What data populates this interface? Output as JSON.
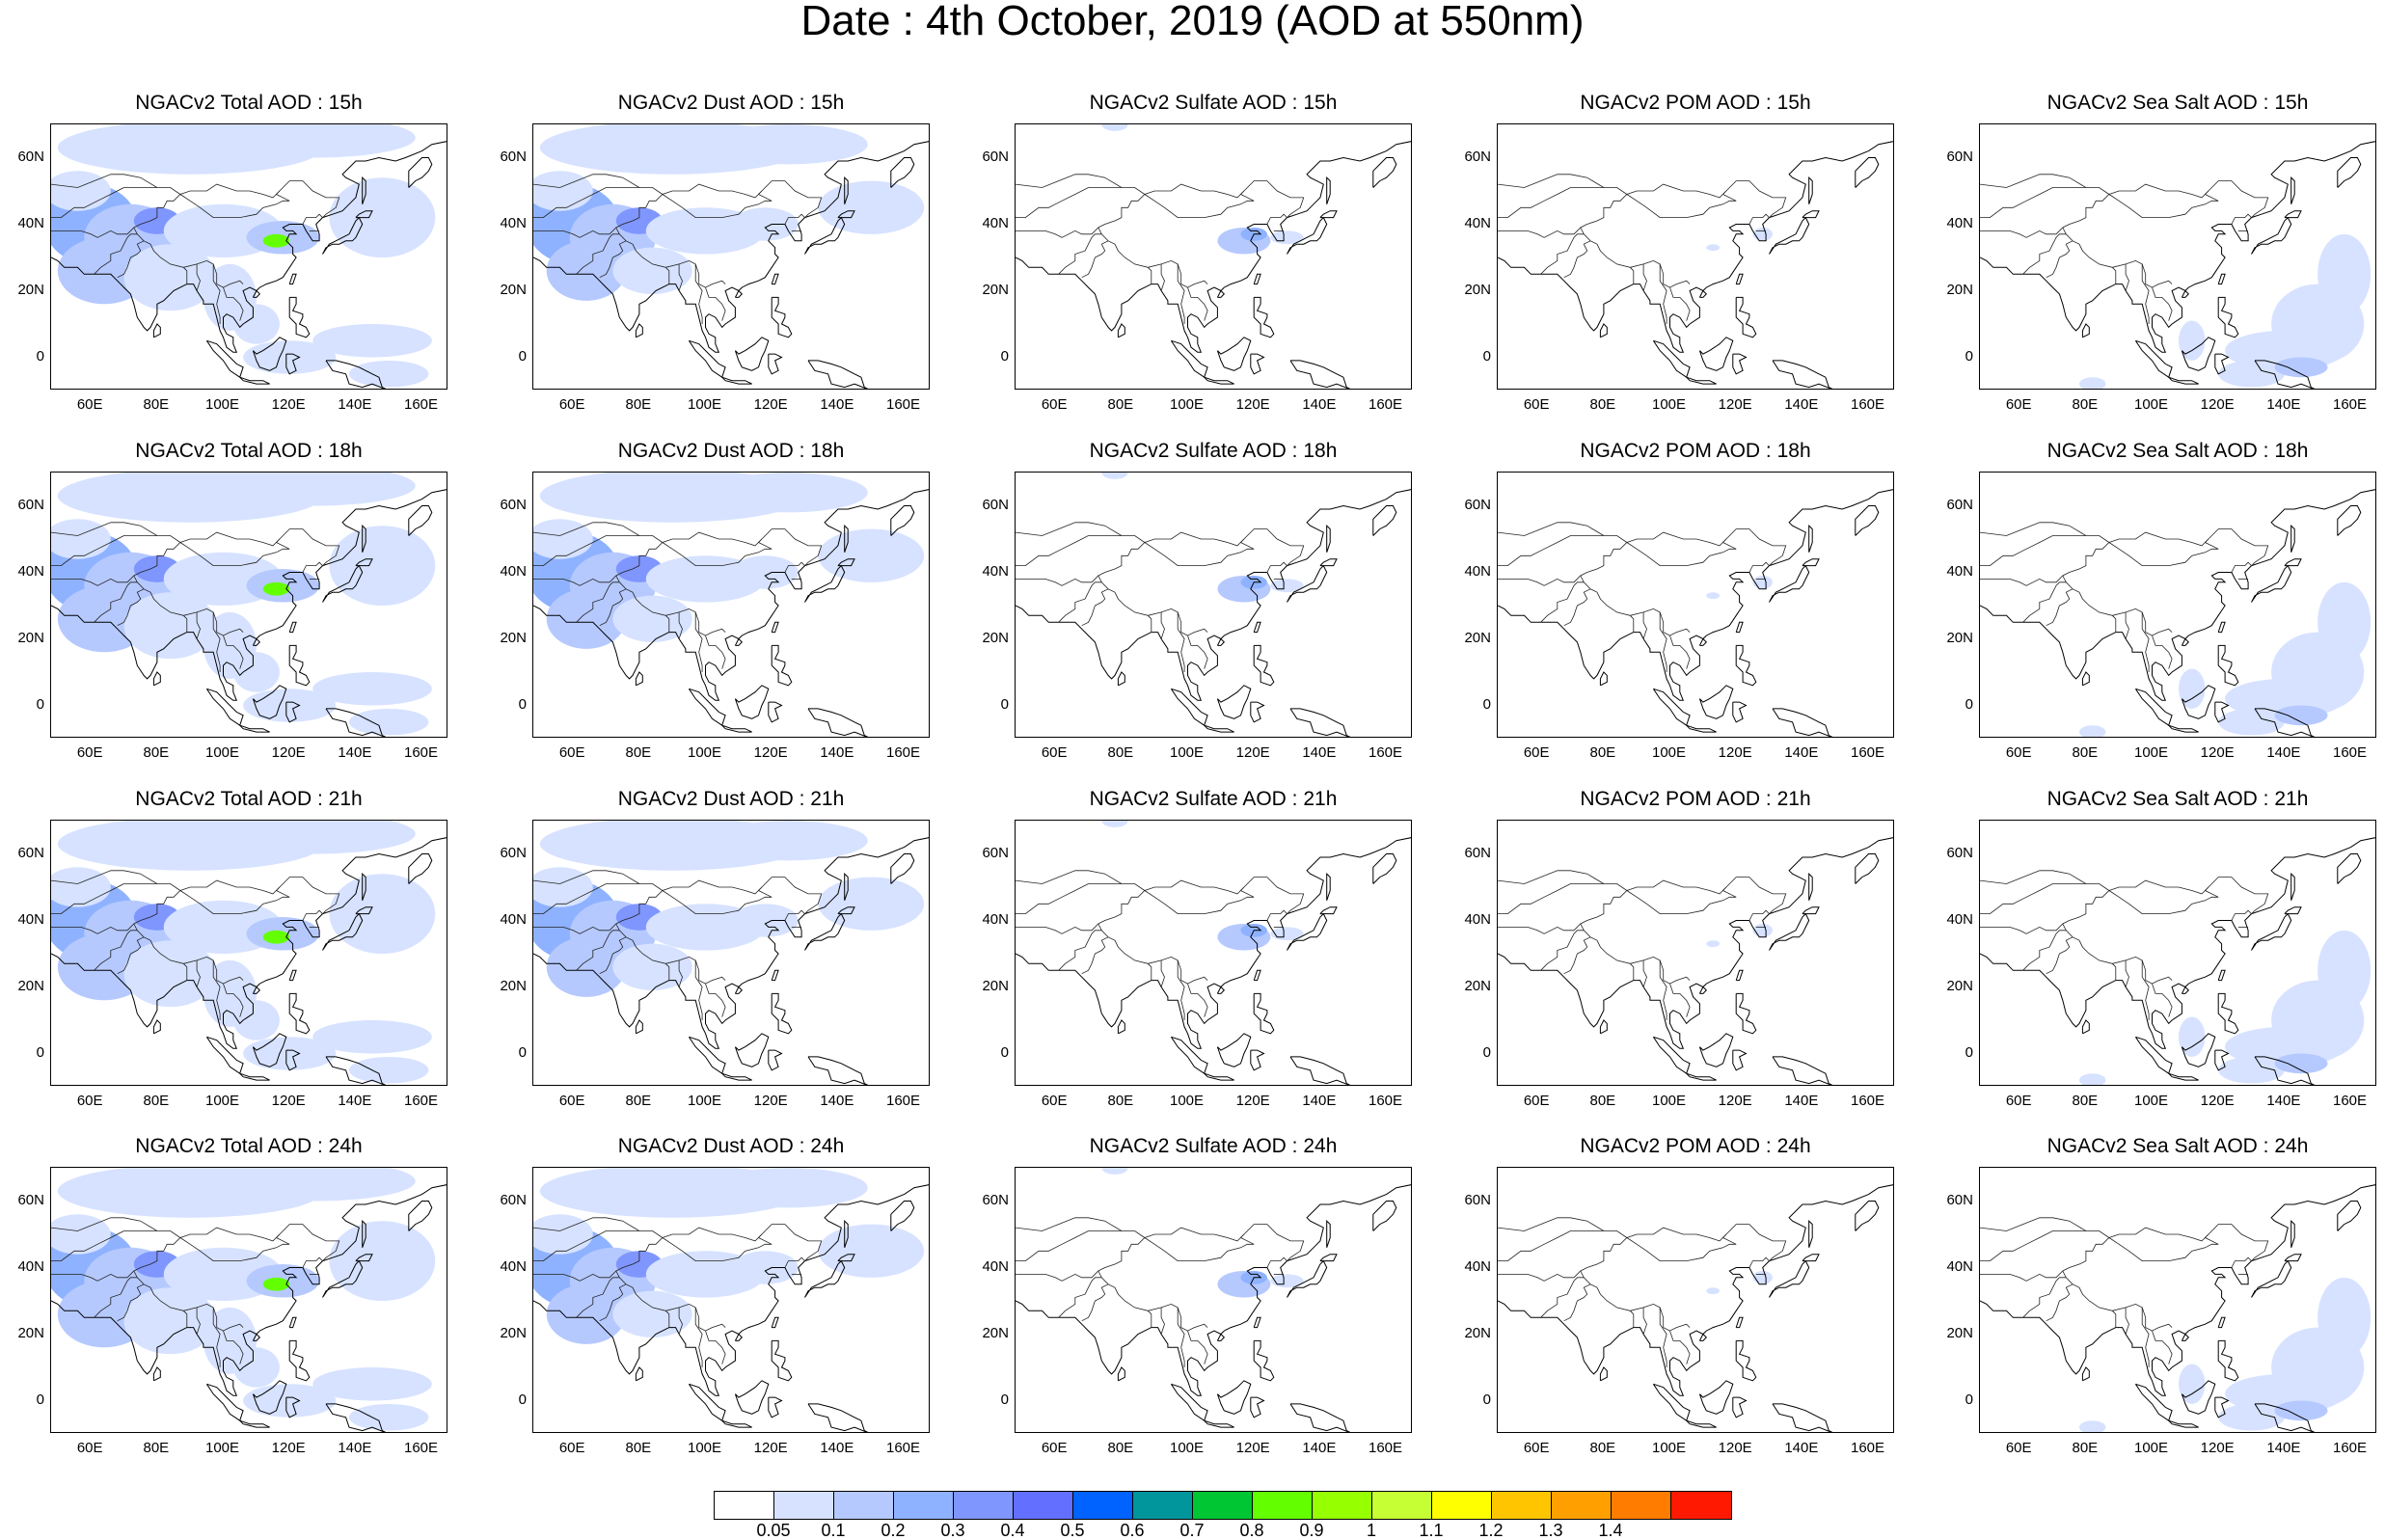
{
  "title": "Date : 4th October, 2019 (AOD at 550nm)",
  "panel_titles": [
    [
      "NGACv2 Total AOD : 15h",
      "NGACv2 Dust AOD : 15h",
      "NGACv2 Sulfate AOD : 15h",
      "NGACv2 POM AOD : 15h",
      "NGACv2 Sea Salt AOD : 15h"
    ],
    [
      "NGACv2 Total AOD : 18h",
      "NGACv2 Dust AOD : 18h",
      "NGACv2 Sulfate AOD : 18h",
      "NGACv2 POM AOD : 18h",
      "NGACv2 Sea Salt AOD : 18h"
    ],
    [
      "NGACv2 Total AOD : 21h",
      "NGACv2 Dust AOD : 21h",
      "NGACv2 Sulfate AOD : 21h",
      "NGACv2 POM AOD : 21h",
      "NGACv2 Sea Salt AOD : 21h"
    ],
    [
      "NGACv2 Total AOD : 24h",
      "NGACv2 Dust AOD : 24h",
      "NGACv2 Sulfate AOD : 24h",
      "NGACv2 POM AOD : 24h",
      "NGACv2 Sea Salt  AOD : 24h"
    ]
  ],
  "lat_ticks": [
    "60N",
    "40N",
    "20N",
    "0"
  ],
  "lon_ticks": [
    "60E",
    "80E",
    "100E",
    "120E",
    "140E",
    "160E"
  ],
  "colorbar": {
    "labels": [
      "0.05",
      "0.1",
      "0.2",
      "0.3",
      "0.4",
      "0.5",
      "0.6",
      "0.7",
      "0.8",
      "0.9",
      "1",
      "1.1",
      "1.2",
      "1.3",
      "1.4"
    ],
    "colors": [
      "#ffffff",
      "#d6e2ff",
      "#b5c9ff",
      "#8eb2ff",
      "#7f96ff",
      "#6370ff",
      "#0063ff",
      "#00969b",
      "#00c634",
      "#63ff00",
      "#96ff00",
      "#c6ff33",
      "#ffff00",
      "#ffc600",
      "#ffa000",
      "#ff7c00",
      "#ff1900"
    ]
  },
  "colors": {
    "light": "#d6e2ff",
    "mid": "#b5c9ff",
    "strong": "#8eb2ff",
    "deep": "#7f96ff",
    "hotspot": "#63ff00"
  }
}
